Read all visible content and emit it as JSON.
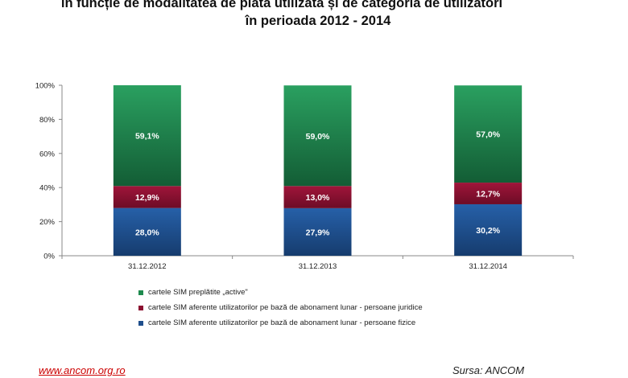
{
  "title": {
    "line1": "în funcție de modalitatea de plată utilizată și de categoria de utilizatori",
    "line2": "în perioada 2012 - 2014"
  },
  "chart_data": {
    "type": "bar",
    "stacked": true,
    "categories": [
      "31.12.2012",
      "31.12.2013",
      "31.12.2014"
    ],
    "ylim": [
      0,
      100
    ],
    "yticks": [
      "0%",
      "20%",
      "40%",
      "60%",
      "80%",
      "100%"
    ],
    "series": [
      {
        "name": "cartele SIM aferente utilizatorilor pe bază de abonament lunar - persoane fizice",
        "values": [
          28.0,
          27.9,
          30.2
        ],
        "labels": [
          "28,0%",
          "27,9%",
          "30,2%"
        ],
        "color": "#1f4e8c"
      },
      {
        "name": "cartele SIM aferente utilizatorilor pe bază de abonament lunar - persoane juridice",
        "values": [
          12.9,
          13.0,
          12.7
        ],
        "labels": [
          "12,9%",
          "13,0%",
          "12,7%"
        ],
        "color": "#8b1030"
      },
      {
        "name": "cartele SIM preplătite „active\"",
        "values": [
          59.1,
          59.0,
          57.0
        ],
        "labels": [
          "59,1%",
          "59,0%",
          "57,0%"
        ],
        "color": "#1e8a4e"
      }
    ],
    "legend_order": [
      2,
      1,
      0
    ],
    "legend_position": "bottom",
    "grid": false
  },
  "footer": {
    "url": "www.ancom.org.ro",
    "source": "Sursa: ANCOM"
  }
}
